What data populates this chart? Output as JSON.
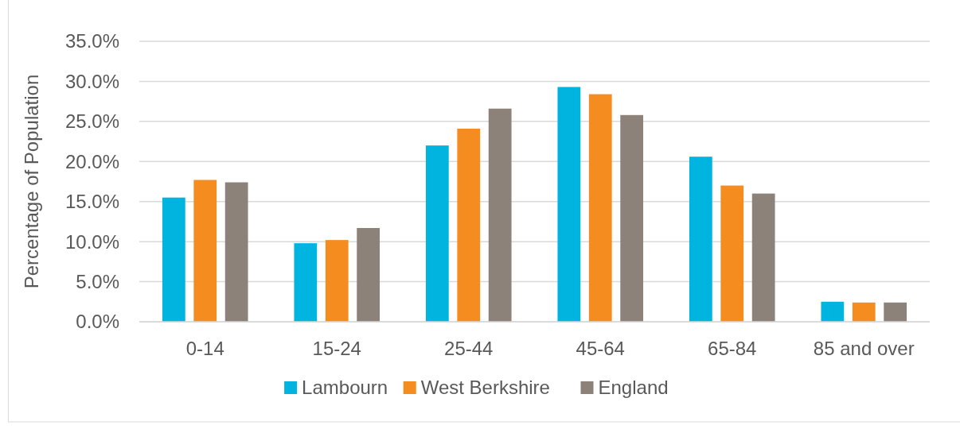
{
  "chart_data": {
    "type": "bar",
    "ylabel": "Percentage of Population",
    "categories": [
      "0-14",
      "15-24",
      "25-44",
      "45-64",
      "65-84",
      "85 and over"
    ],
    "series": [
      {
        "name": "Lambourn",
        "color": "#00b4e0",
        "values": [
          15.5,
          9.8,
          22.0,
          29.3,
          20.6,
          2.5
        ]
      },
      {
        "name": "West Berkshire",
        "color": "#f58c20",
        "values": [
          17.7,
          10.2,
          24.1,
          28.4,
          17.0,
          2.4
        ]
      },
      {
        "name": "England",
        "color": "#8c8279",
        "values": [
          17.4,
          11.7,
          26.6,
          25.8,
          16.0,
          2.4
        ]
      }
    ],
    "ylim": [
      0,
      35
    ],
    "yticks": [
      {
        "value": 0,
        "label": "0.0%"
      },
      {
        "value": 5,
        "label": "5.0%"
      },
      {
        "value": 10,
        "label": "10.0%"
      },
      {
        "value": 15,
        "label": "15.0%"
      },
      {
        "value": 20,
        "label": "20.0%"
      },
      {
        "value": 25,
        "label": "25.0%"
      },
      {
        "value": 30,
        "label": "30.0%"
      },
      {
        "value": 35,
        "label": "35.0%"
      }
    ],
    "grid": "y",
    "legend": "bottom"
  }
}
